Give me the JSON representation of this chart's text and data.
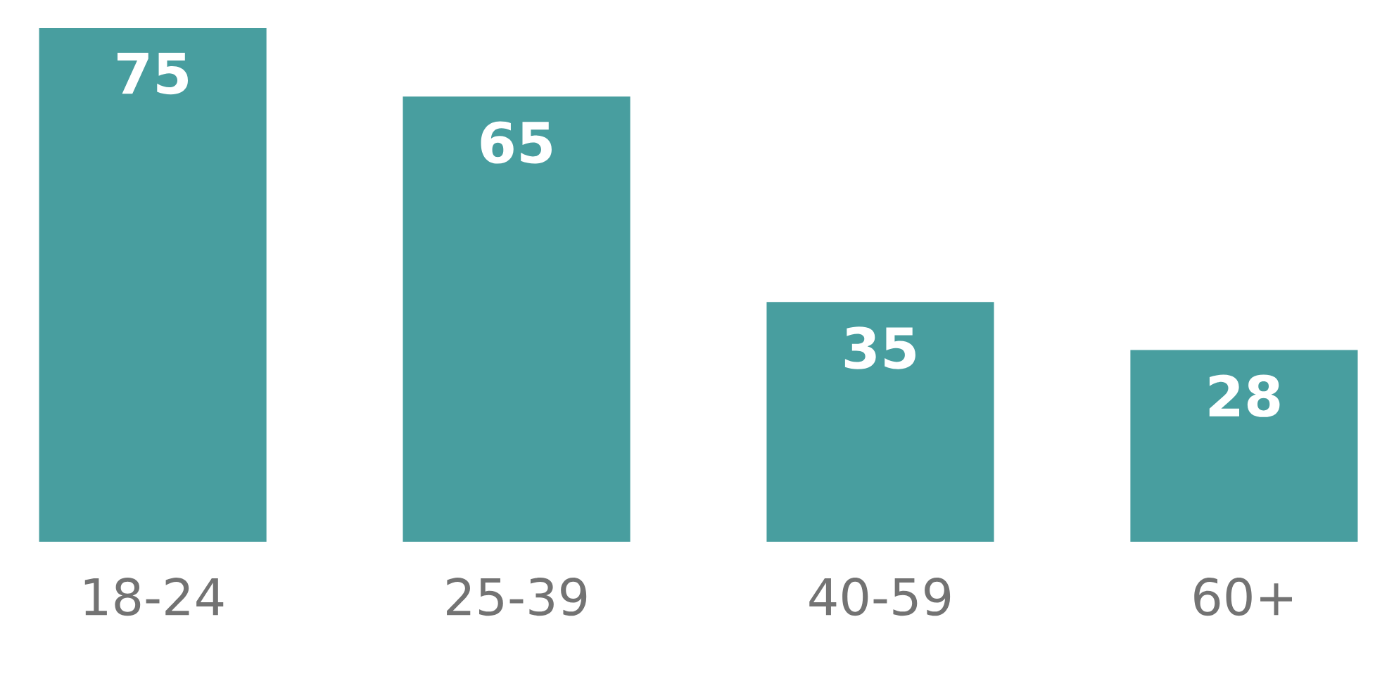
{
  "chart_data": {
    "type": "bar",
    "categories": [
      "18-24",
      "25-39",
      "40-59",
      "60+"
    ],
    "values": [
      75,
      65,
      35,
      28
    ],
    "color": "#489e9f",
    "data_labels": true
  }
}
